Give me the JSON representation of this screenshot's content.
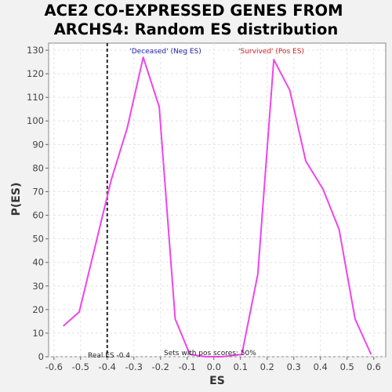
{
  "chart_data": {
    "type": "line",
    "title_lines": [
      "ACE2 CO-EXPRESSED GENES FROM",
      "ARCHS4: Random ES distribution"
    ],
    "xlabel": "ES",
    "ylabel": "P(ES)",
    "xlim": [
      -0.62,
      0.645
    ],
    "ylim": [
      0,
      133
    ],
    "xticks": [
      -0.6,
      -0.5,
      -0.4,
      -0.3,
      -0.2,
      -0.1,
      0.0,
      0.1,
      0.2,
      0.3,
      0.4,
      0.5,
      0.6
    ],
    "xtick_labels": [
      "-0.6",
      "-0.5",
      "-0.4",
      "-0.3",
      "-0.2",
      "-0.1",
      "0.0",
      "0.1",
      "0.2",
      "0.3",
      "0.4",
      "0.5",
      "0.6"
    ],
    "yticks": [
      0,
      10,
      20,
      30,
      40,
      50,
      60,
      70,
      80,
      90,
      100,
      110,
      120,
      130
    ],
    "ytick_labels": [
      "0",
      "10",
      "20",
      "30",
      "40",
      "50",
      "60",
      "70",
      "80",
      "90",
      "100",
      "110",
      "120",
      "130"
    ],
    "grid": true,
    "series": [
      {
        "color": "#ee44ee",
        "x": [
          -0.565,
          -0.505,
          -0.385,
          -0.325,
          -0.265,
          -0.205,
          -0.145,
          -0.09,
          -0.03,
          0.03,
          0.105,
          0.165,
          0.225,
          0.285,
          0.345,
          0.41,
          0.47,
          0.53,
          0.59
        ],
        "y": [
          13,
          19,
          75,
          97,
          127,
          106,
          16,
          1,
          0,
          0,
          1,
          35,
          126,
          113,
          83,
          71,
          54,
          16,
          1
        ]
      }
    ],
    "annotations": {
      "neg_label": "'Deceased' (Neg ES)",
      "neg_color": "#2222aa",
      "pos_label": "'Survived' (Pos ES)",
      "pos_color": "#cc2222",
      "real_es_label": "Real ES -0.4",
      "real_es_value": -0.4,
      "pos_scores_label": "Sets with pos scores: 50%"
    }
  }
}
